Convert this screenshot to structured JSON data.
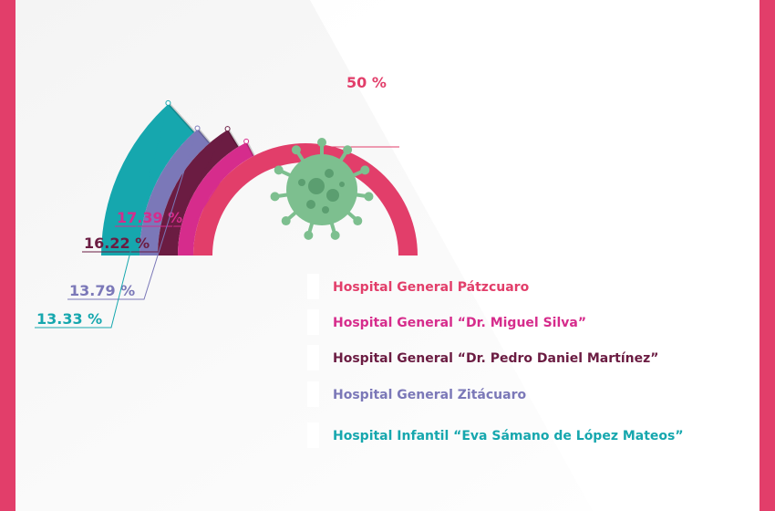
{
  "colors": {
    "frame": "#e23e6a",
    "virus": "#7dbf8f",
    "virus_dark": "#5b9e70"
  },
  "chart_data": {
    "type": "radial-bar",
    "max_value": 50,
    "series": [
      {
        "label": "Hospital General Pátzcuaro",
        "value": 50,
        "value_label": "50 %",
        "color": "#e23e6a"
      },
      {
        "label": "Hospital General “Dr. Miguel Silva”",
        "value": 17.39,
        "value_label": "17.39 %",
        "color": "#d62c8c"
      },
      {
        "label": "Hospital General “Dr. Pedro Daniel Martínez”",
        "value": 16.22,
        "value_label": "16.22 %",
        "color": "#6b1c42"
      },
      {
        "label": "Hospital General Zitácuaro",
        "value": 13.79,
        "value_label": "13.79 %",
        "color": "#7b78b8"
      },
      {
        "label": "Hospital Infantil “Eva Sámano de López Mateos”",
        "value": 13.33,
        "value_label": "13.33 %",
        "color": "#16a7ae"
      }
    ]
  }
}
